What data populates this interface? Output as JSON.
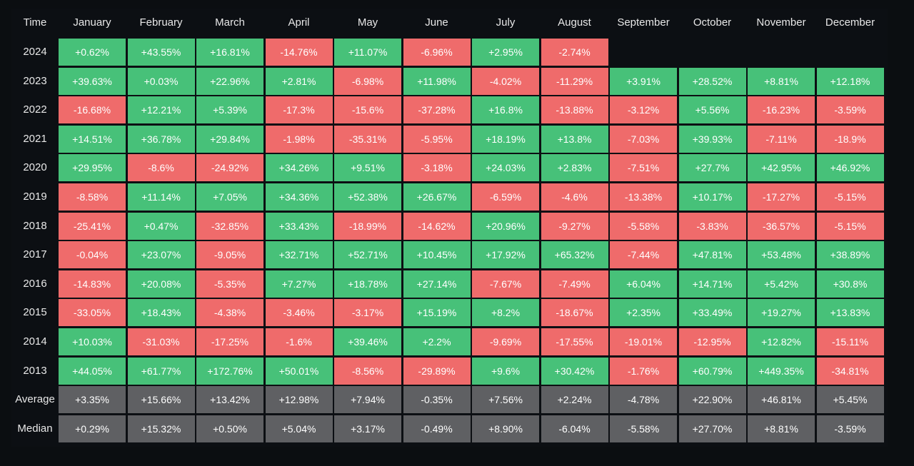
{
  "chart_data": {
    "type": "table",
    "corner_label": "Time",
    "columns": [
      "January",
      "February",
      "March",
      "April",
      "May",
      "June",
      "July",
      "August",
      "September",
      "October",
      "November",
      "December"
    ],
    "rows": [
      {
        "label": "2024",
        "values": [
          "+0.62%",
          "+43.55%",
          "+16.81%",
          "-14.76%",
          "+11.07%",
          "-6.96%",
          "+2.95%",
          "-2.74%",
          "",
          "",
          "",
          ""
        ]
      },
      {
        "label": "2023",
        "values": [
          "+39.63%",
          "+0.03%",
          "+22.96%",
          "+2.81%",
          "-6.98%",
          "+11.98%",
          "-4.02%",
          "-11.29%",
          "+3.91%",
          "+28.52%",
          "+8.81%",
          "+12.18%"
        ]
      },
      {
        "label": "2022",
        "values": [
          "-16.68%",
          "+12.21%",
          "+5.39%",
          "-17.3%",
          "-15.6%",
          "-37.28%",
          "+16.8%",
          "-13.88%",
          "-3.12%",
          "+5.56%",
          "-16.23%",
          "-3.59%"
        ]
      },
      {
        "label": "2021",
        "values": [
          "+14.51%",
          "+36.78%",
          "+29.84%",
          "-1.98%",
          "-35.31%",
          "-5.95%",
          "+18.19%",
          "+13.8%",
          "-7.03%",
          "+39.93%",
          "-7.11%",
          "-18.9%"
        ]
      },
      {
        "label": "2020",
        "values": [
          "+29.95%",
          "-8.6%",
          "-24.92%",
          "+34.26%",
          "+9.51%",
          "-3.18%",
          "+24.03%",
          "+2.83%",
          "-7.51%",
          "+27.7%",
          "+42.95%",
          "+46.92%"
        ]
      },
      {
        "label": "2019",
        "values": [
          "-8.58%",
          "+11.14%",
          "+7.05%",
          "+34.36%",
          "+52.38%",
          "+26.67%",
          "-6.59%",
          "-4.6%",
          "-13.38%",
          "+10.17%",
          "-17.27%",
          "-5.15%"
        ]
      },
      {
        "label": "2018",
        "values": [
          "-25.41%",
          "+0.47%",
          "-32.85%",
          "+33.43%",
          "-18.99%",
          "-14.62%",
          "+20.96%",
          "-9.27%",
          "-5.58%",
          "-3.83%",
          "-36.57%",
          "-5.15%"
        ]
      },
      {
        "label": "2017",
        "values": [
          "-0.04%",
          "+23.07%",
          "-9.05%",
          "+32.71%",
          "+52.71%",
          "+10.45%",
          "+17.92%",
          "+65.32%",
          "-7.44%",
          "+47.81%",
          "+53.48%",
          "+38.89%"
        ]
      },
      {
        "label": "2016",
        "values": [
          "-14.83%",
          "+20.08%",
          "-5.35%",
          "+7.27%",
          "+18.78%",
          "+27.14%",
          "-7.67%",
          "-7.49%",
          "+6.04%",
          "+14.71%",
          "+5.42%",
          "+30.8%"
        ]
      },
      {
        "label": "2015",
        "values": [
          "-33.05%",
          "+18.43%",
          "-4.38%",
          "-3.46%",
          "-3.17%",
          "+15.19%",
          "+8.2%",
          "-18.67%",
          "+2.35%",
          "+33.49%",
          "+19.27%",
          "+13.83%"
        ]
      },
      {
        "label": "2014",
        "values": [
          "+10.03%",
          "-31.03%",
          "-17.25%",
          "-1.6%",
          "+39.46%",
          "+2.2%",
          "-9.69%",
          "-17.55%",
          "-19.01%",
          "-12.95%",
          "+12.82%",
          "-15.11%"
        ]
      },
      {
        "label": "2013",
        "values": [
          "+44.05%",
          "+61.77%",
          "+172.76%",
          "+50.01%",
          "-8.56%",
          "-29.89%",
          "+9.6%",
          "+30.42%",
          "-1.76%",
          "+60.79%",
          "+449.35%",
          "-34.81%"
        ]
      }
    ],
    "summary_rows": [
      {
        "label": "Average",
        "values": [
          "+3.35%",
          "+15.66%",
          "+13.42%",
          "+12.98%",
          "+7.94%",
          "-0.35%",
          "+7.56%",
          "+2.24%",
          "-4.78%",
          "+22.90%",
          "+46.81%",
          "+5.45%"
        ]
      },
      {
        "label": "Median",
        "values": [
          "+0.29%",
          "+15.32%",
          "+0.50%",
          "+5.04%",
          "+3.17%",
          "-0.49%",
          "+8.90%",
          "-6.04%",
          "-5.58%",
          "+27.70%",
          "+8.81%",
          "-3.59%"
        ]
      }
    ],
    "colors": {
      "positive": "#47c179",
      "negative": "#ef6b6b",
      "summary": "#5f6063",
      "background": "#0b0e11",
      "text": "#ffffff"
    }
  }
}
